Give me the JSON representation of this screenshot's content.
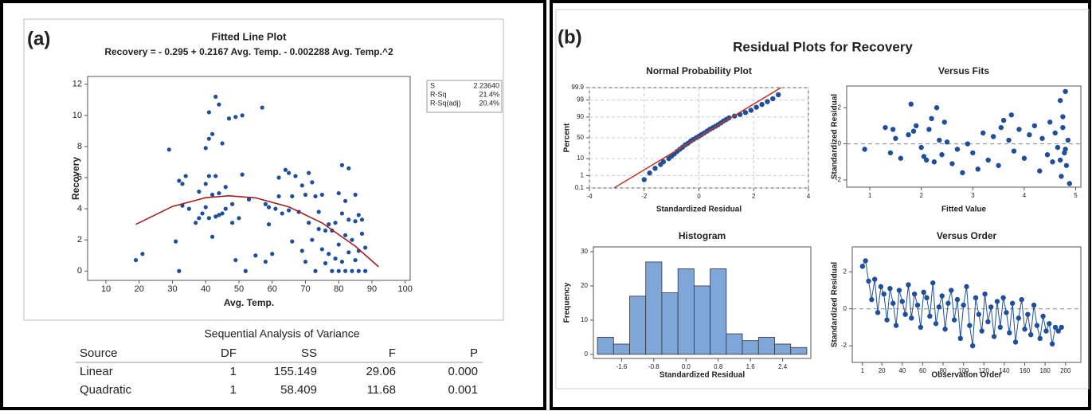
{
  "panels": [
    "(a)",
    "(b)"
  ],
  "figure_title": "Residual Plots for Recovery",
  "fit_summary": {
    "rows": [
      [
        "S",
        "2.23640"
      ],
      [
        "R-Sq",
        "21.4%"
      ],
      [
        "R-Sq(adj)",
        "20.4%"
      ]
    ]
  },
  "anova": {
    "title": "Sequential Analysis of Variance",
    "header": [
      "Source",
      "DF",
      "SS",
      "F",
      "P"
    ],
    "rows": [
      [
        "Linear",
        "1",
        "155.149",
        "29.06",
        "0.000"
      ],
      [
        "Quadratic",
        "1",
        "58.409",
        "11.68",
        "0.001"
      ]
    ]
  },
  "chart_data": [
    {
      "type": "scatter",
      "title": "Fitted Line Plot",
      "subtitle": "Recovery = - 0.295 + 0.2167 Avg. Temp.  - 0.002288 Avg. Temp.^2",
      "x_label": "Avg. Temp.",
      "y_label": "Recovery",
      "xlim": [
        4.5,
        101.5
      ],
      "ylim": [
        -0.6,
        12.5
      ],
      "xticks": [
        10,
        20,
        30,
        40,
        50,
        60,
        70,
        80,
        90,
        100
      ],
      "yticks": [
        0,
        2,
        4,
        6,
        8,
        10,
        12
      ],
      "grid": false,
      "series": [
        {
          "type": "scatter",
          "color": "#1f4f9a",
          "x": [
            19,
            21,
            29,
            31,
            32,
            32,
            33,
            33,
            34,
            35,
            37,
            38,
            38,
            39,
            40,
            40,
            40,
            41,
            41,
            41,
            41,
            42,
            42,
            42,
            43,
            43,
            43,
            44,
            44,
            44,
            45,
            45,
            46,
            46,
            47,
            48,
            48,
            49,
            49,
            50,
            51,
            51,
            52,
            53,
            55,
            57,
            58,
            58,
            59,
            59,
            60,
            61,
            62,
            62,
            63,
            64,
            65,
            65,
            66,
            66,
            67,
            68,
            69,
            69,
            70,
            70,
            71,
            71,
            72,
            72,
            73,
            73,
            74,
            74,
            75,
            75,
            76,
            76,
            77,
            77,
            78,
            78,
            79,
            79,
            80,
            80,
            80,
            81,
            81,
            81,
            82,
            82,
            82,
            83,
            83,
            83,
            84,
            84,
            85,
            85,
            85,
            86,
            86,
            86,
            87,
            87,
            88,
            88
          ],
          "values": [
            0.7,
            1.1,
            7.8,
            1.9,
            5.8,
            0,
            5.6,
            4.2,
            6.1,
            4.0,
            3.1,
            5.1,
            3.4,
            3.7,
            4.1,
            5.6,
            7.9,
            8.5,
            10.2,
            6.1,
            3.4,
            2.2,
            8.8,
            4.9,
            11.2,
            3.5,
            6.1,
            10.7,
            5.0,
            3.6,
            8.2,
            3.7,
            5.4,
            4.0,
            9.8,
            4.3,
            3.1,
            9.9,
            0.7,
            3.4,
            6.2,
            10.0,
            0,
            4.6,
            1.0,
            10.5,
            0.6,
            4.3,
            4.1,
            3.0,
            1.1,
            4.0,
            6.0,
            4.8,
            3.7,
            6.5,
            6.3,
            3.9,
            4.8,
            1.9,
            6.1,
            3.8,
            5.5,
            1.3,
            4.9,
            0.6,
            6.3,
            3.1,
            5.7,
            2.0,
            4.8,
            0,
            3.8,
            2.7,
            4.9,
            1.4,
            2.6,
            0.5,
            3.0,
            1.1,
            2.6,
            0,
            3.1,
            0.8,
            5.0,
            1.7,
            0,
            6.8,
            3.7,
            0.6,
            4.5,
            2.3,
            0,
            6.6,
            1.2,
            3.3,
            2.0,
            0,
            4.9,
            3.2,
            0.7,
            3.6,
            1.3,
            0,
            2.4,
            3.3,
            1.5,
            0
          ]
        },
        {
          "type": "line",
          "color": "#a01e1e",
          "x": [
            19,
            30,
            40,
            47,
            55,
            65,
            75,
            85,
            92
          ],
          "values": [
            2.996,
            4.147,
            4.712,
            4.836,
            4.703,
            4.124,
            3.088,
            1.594,
            0.275
          ]
        }
      ]
    },
    {
      "type": "scatter",
      "title": "Normal Probability Plot",
      "x_label": "Standardized Residual",
      "y_label": "Percent",
      "yscale": "probability",
      "xlim": [
        -4,
        4
      ],
      "ylim": [
        0.1,
        99.9
      ],
      "xticks": [
        -4,
        -2,
        0,
        2,
        4
      ],
      "yticks": [
        0.1,
        1,
        10,
        50,
        90,
        99,
        99.9
      ],
      "grid": true,
      "series": [
        {
          "type": "scatter",
          "color": "#1f4f9a",
          "x": [
            -2.0,
            -1.8,
            -1.6,
            -1.4,
            -1.3,
            -1.1,
            -1.0,
            -0.9,
            -0.8,
            -0.7,
            -0.6,
            -0.5,
            -0.4,
            -0.3,
            -0.2,
            -0.1,
            0.0,
            0.1,
            0.2,
            0.3,
            0.4,
            0.5,
            0.6,
            0.7,
            0.8,
            0.9,
            1.0,
            1.1,
            1.3,
            1.5,
            1.7,
            1.9,
            2.1,
            2.3,
            2.5,
            2.7,
            2.9
          ],
          "values": [
            0.5,
            1.5,
            3,
            5,
            7,
            10,
            13,
            16,
            20,
            24,
            28,
            33,
            37,
            42,
            46,
            50,
            54,
            58,
            62,
            66,
            70,
            73,
            76,
            79,
            82,
            85,
            87,
            89,
            91,
            92.5,
            94,
            95.5,
            97,
            98,
            98.7,
            99.2,
            99.6
          ]
        },
        {
          "type": "line",
          "color": "#c0392b",
          "x": [
            -3.1,
            3.0
          ],
          "values": [
            0.1,
            99.9
          ]
        }
      ]
    },
    {
      "type": "scatter",
      "title": "Versus Fits",
      "x_label": "Fitted Value",
      "y_label": "Standardized Residual",
      "xlim": [
        0.55,
        5.1
      ],
      "ylim": [
        -2.4,
        3.2
      ],
      "xticks": [
        1,
        2,
        3,
        4,
        5
      ],
      "yticks": [
        -2,
        0,
        2
      ],
      "grid": false,
      "refline": 0,
      "series": [
        {
          "type": "scatter",
          "color": "#1f4f9a",
          "x": [
            0.9,
            1.3,
            1.4,
            1.45,
            1.5,
            1.6,
            1.75,
            1.8,
            1.85,
            1.9,
            2.0,
            2.05,
            2.1,
            2.15,
            2.2,
            2.25,
            2.3,
            2.35,
            2.4,
            2.45,
            2.5,
            2.6,
            2.7,
            2.8,
            2.9,
            3.0,
            3.1,
            3.2,
            3.3,
            3.4,
            3.5,
            3.55,
            3.6,
            3.7,
            3.75,
            3.8,
            3.9,
            4.0,
            4.1,
            4.2,
            4.3,
            4.35,
            4.45,
            4.5,
            4.55,
            4.6,
            4.65,
            4.7,
            4.72,
            4.75,
            4.78,
            4.8,
            4.82,
            4.85,
            4.88,
            4.7,
            4.75,
            4.8
          ],
          "values": [
            -0.3,
            0.9,
            -0.5,
            0.8,
            0.3,
            -0.8,
            0.5,
            2.2,
            0.7,
            1.0,
            -0.2,
            -0.7,
            -0.9,
            0.8,
            1.4,
            -1.0,
            2.0,
            0.2,
            -0.6,
            1.2,
            0.1,
            -1.1,
            -0.3,
            -1.6,
            0.0,
            -0.5,
            -1.4,
            0.6,
            -0.9,
            0.4,
            -1.2,
            0.9,
            1.3,
            0.2,
            1.6,
            -0.4,
            0.8,
            -0.8,
            0.5,
            1.0,
            -1.5,
            0.3,
            -0.6,
            1.2,
            -1.0,
            0.6,
            -0.2,
            2.4,
            -1.8,
            1.5,
            -0.5,
            2.9,
            -1.2,
            0.2,
            -2.2,
            -0.9,
            0.9,
            -0.3
          ]
        }
      ]
    },
    {
      "type": "histogram",
      "title": "Histogram",
      "x_label": "Standardized Residual",
      "y_label": "Frequency",
      "color": "#7ea6d8",
      "xlim": [
        -2.3,
        3.1
      ],
      "ylim": [
        -1.2,
        31.4
      ],
      "xticks": [
        -1.6,
        -0.8,
        {
          "value": 0,
          "label": "0.0"
        },
        0.8,
        1.6,
        2.4
      ],
      "yticks": [
        0,
        10,
        20,
        30
      ],
      "bins": [
        -2.2,
        -1.8,
        -1.4,
        -1.0,
        -0.6,
        -0.2,
        0.2,
        0.6,
        1.0,
        1.4,
        1.8,
        2.2,
        2.6,
        3.0
      ],
      "values": [
        5,
        3,
        17,
        27,
        18,
        25,
        20,
        25,
        6,
        4,
        5,
        3,
        2
      ]
    },
    {
      "type": "line",
      "title": "Versus Order",
      "x_label": "Observation Order",
      "y_label": "Standardized Residual",
      "xlim": [
        -9,
        215
      ],
      "ylim": [
        -2.9,
        3.35
      ],
      "xticks": [
        1,
        20,
        40,
        60,
        80,
        100,
        120,
        140,
        160,
        180,
        200
      ],
      "yticks": [
        -2,
        0,
        2
      ],
      "grid": false,
      "refline": 0,
      "series": [
        {
          "type": "line",
          "markers": true,
          "color": "#1f4f9a",
          "x": [
            1,
            4,
            7,
            10,
            13,
            16,
            19,
            22,
            25,
            28,
            31,
            34,
            37,
            40,
            43,
            46,
            49,
            52,
            55,
            58,
            61,
            64,
            67,
            70,
            73,
            76,
            79,
            82,
            85,
            88,
            91,
            94,
            97,
            100,
            103,
            106,
            109,
            112,
            115,
            118,
            121,
            124,
            127,
            130,
            133,
            136,
            139,
            142,
            145,
            148,
            151,
            154,
            157,
            160,
            163,
            166,
            169,
            172,
            175,
            178,
            181,
            184,
            187,
            190,
            193,
            196
          ],
          "values": [
            2.3,
            2.6,
            1.5,
            0.5,
            1.6,
            -0.2,
            1.2,
            0.8,
            -0.6,
            1.1,
            0.3,
            -0.9,
            1.0,
            0.4,
            -0.3,
            1.3,
            -0.5,
            0.8,
            0.2,
            -1.0,
            0.9,
            0.6,
            -0.4,
            1.4,
            -0.8,
            0.1,
            0.7,
            -1.1,
            0.3,
            1.0,
            -0.6,
            0.5,
            -1.6,
            0.2,
            1.2,
            -0.9,
            -2.0,
            0.6,
            -0.3,
            -1.2,
            0.8,
            -0.7,
            0.1,
            -1.5,
            0.4,
            -1.0,
            0.6,
            -0.2,
            -1.3,
            0.3,
            -1.8,
            -0.5,
            0.5,
            -1.1,
            -0.3,
            -1.4,
            0.2,
            -0.9,
            -1.6,
            -0.4,
            -1.2,
            -0.8,
            -1.9,
            -1.0,
            -1.2,
            -1.0
          ]
        }
      ]
    }
  ]
}
